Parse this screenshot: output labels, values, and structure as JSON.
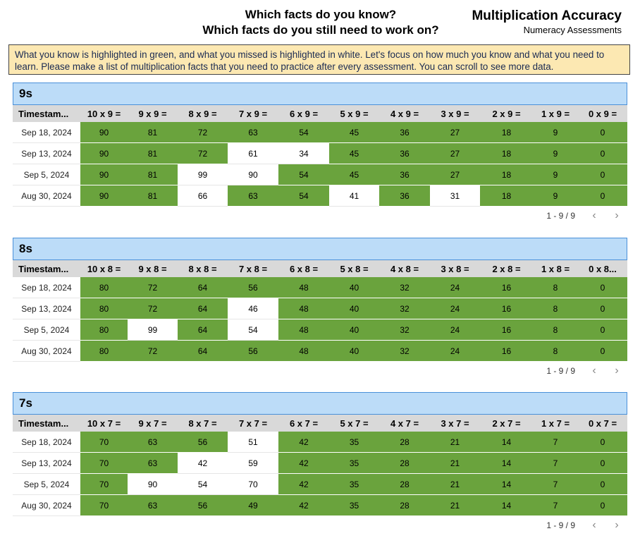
{
  "header": {
    "question_line1": "Which facts do you know?",
    "question_line2": "Which facts do you still need to work on?",
    "title": "Multiplication Accuracy",
    "subtitle": "Numeracy Assessments"
  },
  "note": "What you know is highlighted in green, and what you missed is highlighted in white. Let's focus on how much you know and what you need to learn.  Please make a list of multiplication facts that you need to practice after every assessment.  You can scroll to see more data.",
  "colors": {
    "known": "#6aa33d",
    "missed": "#ffffff",
    "section_header": "#bcdcf8",
    "note_bg": "#fce8b2"
  },
  "sections": [
    {
      "title": "9s",
      "columns": [
        "Timestam...",
        "10 x 9 =",
        "9 x 9 =",
        "8 x 9 =",
        "7 x 9 =",
        "6 x 9 =",
        "5 x 9 =",
        "4 x 9 =",
        "3 x 9 =",
        "2 x 9 =",
        "1 x 9 =",
        "0 x 9 ="
      ],
      "correct": [
        90,
        81,
        72,
        63,
        54,
        45,
        36,
        27,
        18,
        9,
        0
      ],
      "rows": [
        {
          "date": "Sep 18, 2024",
          "values": [
            "90",
            "81",
            "72",
            "63",
            "54",
            "45",
            "36",
            "27",
            "18",
            "9",
            "0"
          ]
        },
        {
          "date": "Sep 13, 2024",
          "values": [
            "90",
            "81",
            "72",
            "61",
            "34",
            "45",
            "36",
            "27",
            "18",
            "9",
            "0"
          ]
        },
        {
          "date": "Sep 5, 2024",
          "values": [
            "90",
            "81",
            "99",
            "90",
            "54",
            "45",
            "36",
            "27",
            "18",
            "9",
            "0"
          ]
        },
        {
          "date": "Aug 30, 2024",
          "values": [
            "90",
            "81",
            "66",
            "63",
            "54",
            "41",
            "36",
            "31",
            "18",
            "9",
            "0"
          ]
        }
      ],
      "pager": "1 - 9 / 9"
    },
    {
      "title": "8s",
      "columns": [
        "Timestam...",
        "10 x 8 =",
        "9 x 8 =",
        "8 x 8 =",
        "7 x 8 =",
        "6 x 8 =",
        "5 x 8 =",
        "4 x 8 =",
        "3 x 8 =",
        "2 x 8 =",
        "1 x 8 =",
        "0 x 8..."
      ],
      "correct": [
        80,
        72,
        64,
        56,
        48,
        40,
        32,
        24,
        16,
        8,
        0
      ],
      "rows": [
        {
          "date": "Sep 18, 2024",
          "values": [
            "80",
            "72",
            "64",
            "56",
            "48",
            "40",
            "32",
            "24",
            "16",
            "8",
            "0"
          ]
        },
        {
          "date": "Sep 13, 2024",
          "values": [
            "80",
            "72",
            "64",
            "46",
            "48",
            "40",
            "32",
            "24",
            "16",
            "8",
            "0"
          ]
        },
        {
          "date": "Sep 5, 2024",
          "values": [
            "80",
            "99",
            "64",
            "54",
            "48",
            "40",
            "32",
            "24",
            "16",
            "8",
            "0"
          ]
        },
        {
          "date": "Aug 30, 2024",
          "values": [
            "80",
            "72",
            "64",
            "56",
            "48",
            "40",
            "32",
            "24",
            "16",
            "8",
            "0"
          ]
        }
      ],
      "pager": "1 - 9 / 9"
    },
    {
      "title": "7s",
      "columns": [
        "Timestam...",
        "10 x 7 =",
        "9 x 7 =",
        "8 x 7 =",
        "7 x 7 =",
        "6 x 7 =",
        "5 x 7 =",
        "4 x 7 =",
        "3 x 7 =",
        "2 x 7 =",
        "1 x 7 =",
        "0 x 7 ="
      ],
      "correct": [
        70,
        63,
        56,
        49,
        42,
        35,
        28,
        21,
        14,
        7,
        0
      ],
      "rows": [
        {
          "date": "Sep 18, 2024",
          "values": [
            "70",
            "63",
            "56",
            "51",
            "42",
            "35",
            "28",
            "21",
            "14",
            "7",
            "0"
          ]
        },
        {
          "date": "Sep 13, 2024",
          "values": [
            "70",
            "63",
            "42",
            "59",
            "42",
            "35",
            "28",
            "21",
            "14",
            "7",
            "0"
          ]
        },
        {
          "date": "Sep 5, 2024",
          "values": [
            "70",
            "90",
            "54",
            "70",
            "42",
            "35",
            "28",
            "21",
            "14",
            "7",
            "0"
          ]
        },
        {
          "date": "Aug 30, 2024",
          "values": [
            "70",
            "63",
            "56",
            "49",
            "42",
            "35",
            "28",
            "21",
            "14",
            "7",
            "0"
          ]
        }
      ],
      "pager": "1 - 9 / 9"
    }
  ],
  "icons": {
    "prev": "chevron-left-icon",
    "next": "chevron-right-icon"
  }
}
